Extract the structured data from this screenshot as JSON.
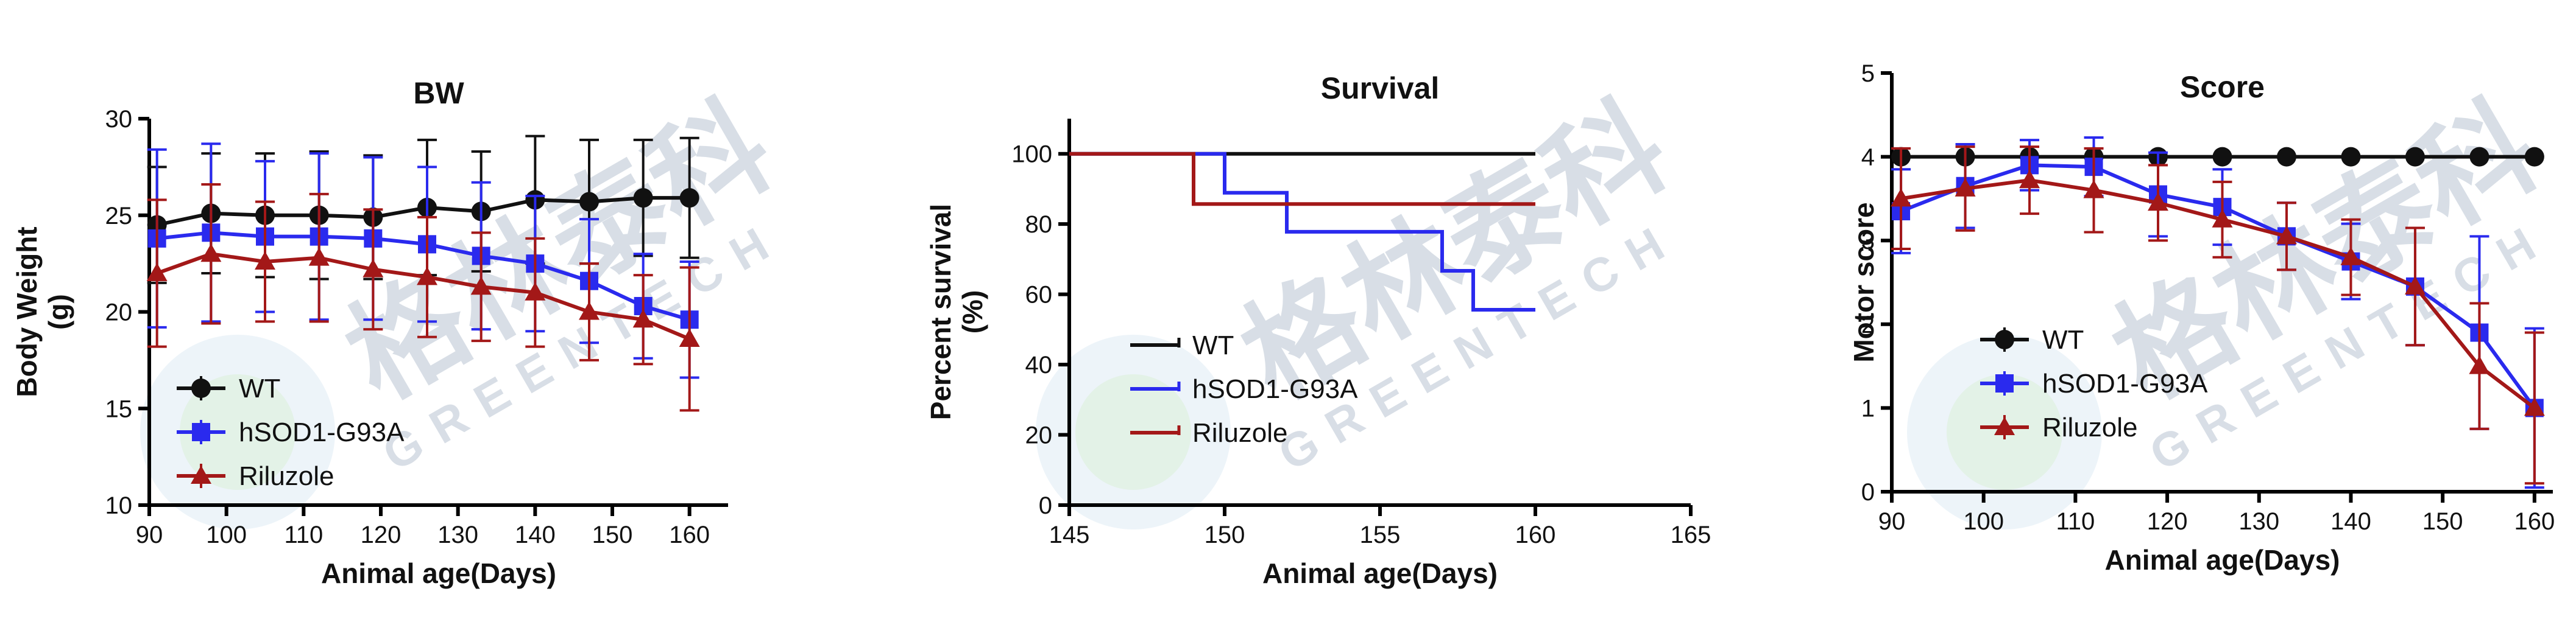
{
  "colors": {
    "WT": "#111111",
    "hSOD1-G93A": "#2a2aee",
    "Riluzole": "#a31818"
  },
  "watermark": {
    "cn": "格林泰科",
    "en": "GREENTECH"
  },
  "chart_data": [
    {
      "type": "line",
      "title": "BW",
      "xlabel": "Animal age(Days)",
      "ylabel": "Body Weight",
      "ylabel2": "(g)",
      "xlim": [
        90,
        165
      ],
      "ylim": [
        10,
        30
      ],
      "xticks": [
        90,
        100,
        110,
        120,
        130,
        140,
        150,
        160
      ],
      "yticks": [
        10,
        15,
        20,
        25,
        30
      ],
      "legend_position": "bottom-left",
      "series": [
        {
          "name": "WT",
          "marker": "circle",
          "x": [
            91,
            98,
            105,
            112,
            119,
            126,
            133,
            140,
            147,
            154,
            160
          ],
          "y": [
            24.5,
            25.1,
            25.0,
            25.0,
            24.9,
            25.4,
            25.2,
            25.8,
            25.7,
            25.9,
            25.9
          ],
          "err": [
            3.0,
            3.1,
            3.2,
            3.3,
            3.2,
            3.5,
            3.1,
            3.3,
            3.2,
            3.0,
            3.1
          ]
        },
        {
          "name": "hSOD1-G93A",
          "marker": "square",
          "x": [
            91,
            98,
            105,
            112,
            119,
            126,
            133,
            140,
            147,
            154,
            160
          ],
          "y": [
            23.8,
            24.1,
            23.9,
            23.9,
            23.8,
            23.5,
            22.9,
            22.5,
            21.6,
            20.3,
            19.6
          ],
          "err": [
            4.6,
            4.6,
            3.9,
            4.3,
            4.2,
            4.0,
            3.8,
            3.5,
            3.2,
            2.7,
            3.0
          ]
        },
        {
          "name": "Riluzole",
          "marker": "triangle",
          "x": [
            91,
            98,
            105,
            112,
            119,
            126,
            133,
            140,
            147,
            154,
            160
          ],
          "y": [
            22.0,
            23.0,
            22.6,
            22.8,
            22.2,
            21.8,
            21.3,
            21.0,
            20.0,
            19.6,
            18.6
          ],
          "err": [
            3.8,
            3.6,
            3.1,
            3.3,
            3.1,
            3.1,
            2.8,
            2.8,
            2.5,
            2.3,
            3.7
          ]
        }
      ]
    },
    {
      "type": "line",
      "step": true,
      "title": "Survival",
      "xlabel": "Animal age(Days)",
      "ylabel": "Percent survival",
      "ylabel2": "(%)",
      "xlim": [
        145,
        165
      ],
      "ylim": [
        0,
        110
      ],
      "xticks": [
        145,
        150,
        155,
        160,
        165
      ],
      "yticks": [
        0,
        20,
        40,
        60,
        80,
        100
      ],
      "legend_position": "bottom-left",
      "series": [
        {
          "name": "WT",
          "x": [
            145,
            160
          ],
          "y": [
            100,
            100
          ]
        },
        {
          "name": "hSOD1-G93A",
          "x": [
            145,
            150,
            152,
            157,
            158,
            160
          ],
          "y": [
            100,
            88.9,
            77.8,
            66.7,
            55.6,
            55.6
          ]
        },
        {
          "name": "Riluzole",
          "x": [
            145,
            149,
            160
          ],
          "y": [
            100,
            85.7,
            85.7
          ]
        }
      ]
    },
    {
      "type": "line",
      "title": "Score",
      "xlabel": "Animal age(Days)",
      "ylabel": "Motor score",
      "xlim": [
        90,
        162
      ],
      "ylim": [
        0,
        5
      ],
      "xticks": [
        90,
        100,
        110,
        120,
        130,
        140,
        150,
        160
      ],
      "yticks": [
        0,
        1,
        2,
        3,
        4,
        5
      ],
      "legend_position": "bottom-left",
      "series": [
        {
          "name": "WT",
          "marker": "circle",
          "x": [
            91,
            98,
            105,
            112,
            119,
            126,
            133,
            140,
            147,
            154,
            160
          ],
          "y": [
            4,
            4,
            4,
            4,
            4,
            4,
            4,
            4,
            4,
            4,
            4
          ],
          "err": [
            0,
            0,
            0,
            0,
            0,
            0,
            0,
            0,
            0,
            0,
            0
          ]
        },
        {
          "name": "hSOD1-G93A",
          "marker": "square",
          "x": [
            91,
            98,
            105,
            112,
            119,
            126,
            133,
            140,
            147,
            154,
            160
          ],
          "y": [
            3.35,
            3.65,
            3.9,
            3.88,
            3.55,
            3.4,
            3.05,
            2.75,
            2.45,
            1.9,
            1.0
          ],
          "err": [
            0.5,
            0.5,
            0.3,
            0.35,
            0.5,
            0.45,
            0.4,
            0.45,
            0.7,
            1.15,
            0.95
          ]
        },
        {
          "name": "Riluzole",
          "marker": "triangle",
          "x": [
            91,
            98,
            105,
            112,
            119,
            126,
            133,
            140,
            147,
            154,
            160
          ],
          "y": [
            3.5,
            3.62,
            3.72,
            3.6,
            3.45,
            3.25,
            3.05,
            2.8,
            2.45,
            1.5,
            1.0
          ],
          "err": [
            0.6,
            0.5,
            0.4,
            0.5,
            0.45,
            0.45,
            0.4,
            0.45,
            0.7,
            0.75,
            0.9
          ]
        }
      ]
    }
  ]
}
